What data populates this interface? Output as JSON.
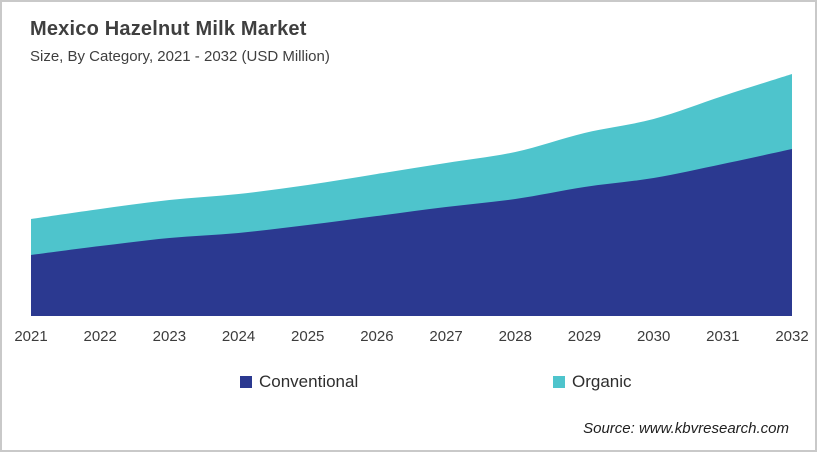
{
  "header": {
    "title": "Mexico Hazelnut Milk Market",
    "subtitle": "Size, By Category, 2021 - 2032 (USD Million)"
  },
  "chart_data": {
    "type": "area",
    "stacked": true,
    "title": "Mexico Hazelnut Milk Market",
    "subtitle": "Size, By Category, 2021 - 2032 (USD Million)",
    "categories": [
      "2021",
      "2022",
      "2023",
      "2024",
      "2025",
      "2026",
      "2027",
      "2028",
      "2029",
      "2030",
      "2031",
      "2032"
    ],
    "series": [
      {
        "name": "Conventional",
        "color": "#2B3990",
        "values": [
          61,
          70,
          78,
          83,
          91,
          100,
          109,
          117,
          129,
          138,
          152,
          167
        ]
      },
      {
        "name": "Organic",
        "color": "#4EC4CC",
        "values": [
          36,
          37,
          38,
          39,
          40,
          42,
          44,
          47,
          54,
          59,
          68,
          75
        ]
      }
    ],
    "xlabel": "",
    "ylabel": "USD Million",
    "ylim": [
      0,
      249
    ],
    "y_axis_visible": false,
    "grid": false,
    "legend_position": "bottom",
    "values_are_estimates": true
  },
  "source": {
    "text": "Source: www.kbvresearch.com"
  }
}
